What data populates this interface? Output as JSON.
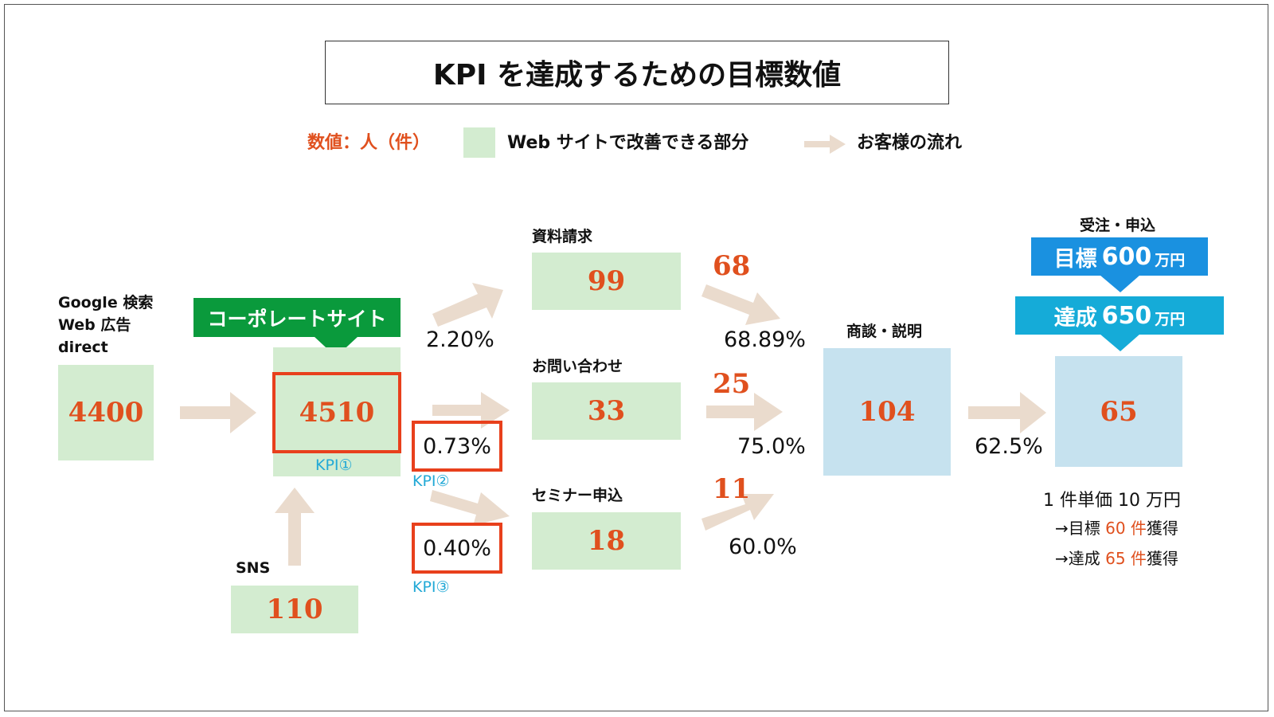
{
  "title": "KPI を達成するための目標数値",
  "legend": {
    "unit": "数値：人（件）",
    "green_label": "Web サイトで改善できる部分",
    "arrow_label": "お客様の流れ"
  },
  "sources": {
    "label_lines": [
      "Google 検索",
      "Web 広告",
      "direct"
    ],
    "value": "4400"
  },
  "sns": {
    "label": "SNS",
    "value": "110"
  },
  "corporate": {
    "banner": "コーポレートサイト",
    "value": "4510",
    "kpi": "KPI①"
  },
  "conversions": [
    {
      "label": "資料請求",
      "value": "99",
      "rate": "2.20%",
      "kpi": "",
      "next_count": "68",
      "next_rate": "68.89%"
    },
    {
      "label": "お問い合わせ",
      "value": "33",
      "rate": "0.73%",
      "kpi": "KPI②",
      "next_count": "25",
      "next_rate": "75.0%"
    },
    {
      "label": "セミナー申込",
      "value": "18",
      "rate": "0.40%",
      "kpi": "KPI③",
      "next_count": "11",
      "next_rate": "60.0%"
    }
  ],
  "meeting": {
    "label": "商談・説明",
    "value": "104",
    "rate": "62.5%"
  },
  "orders": {
    "label": "受注・申込",
    "target_prefix": "目標",
    "target_value": "600",
    "target_unit": "万円",
    "achieved_prefix": "達成",
    "achieved_value": "650",
    "achieved_unit": "万円",
    "value": "65"
  },
  "notes": {
    "unit_price": "1 件単価 10 万円",
    "target_line": {
      "prefix": "→目標 ",
      "count": "60 件",
      "suffix": "獲得"
    },
    "achieved_line": {
      "prefix": "→達成 ",
      "count": "65 件",
      "suffix": "獲得"
    }
  },
  "colors": {
    "accent_orange": "#e0501e",
    "green_area": "#d3ecd0",
    "blue_area": "#c6e2ef",
    "arrow": "#eadbcd",
    "kpi_red": "#e8401c",
    "kpi_text": "#22a9d6",
    "banner_green": "#0a9a3c",
    "banner_blue": "#1a91e0",
    "banner_cyan": "#15abd8"
  }
}
